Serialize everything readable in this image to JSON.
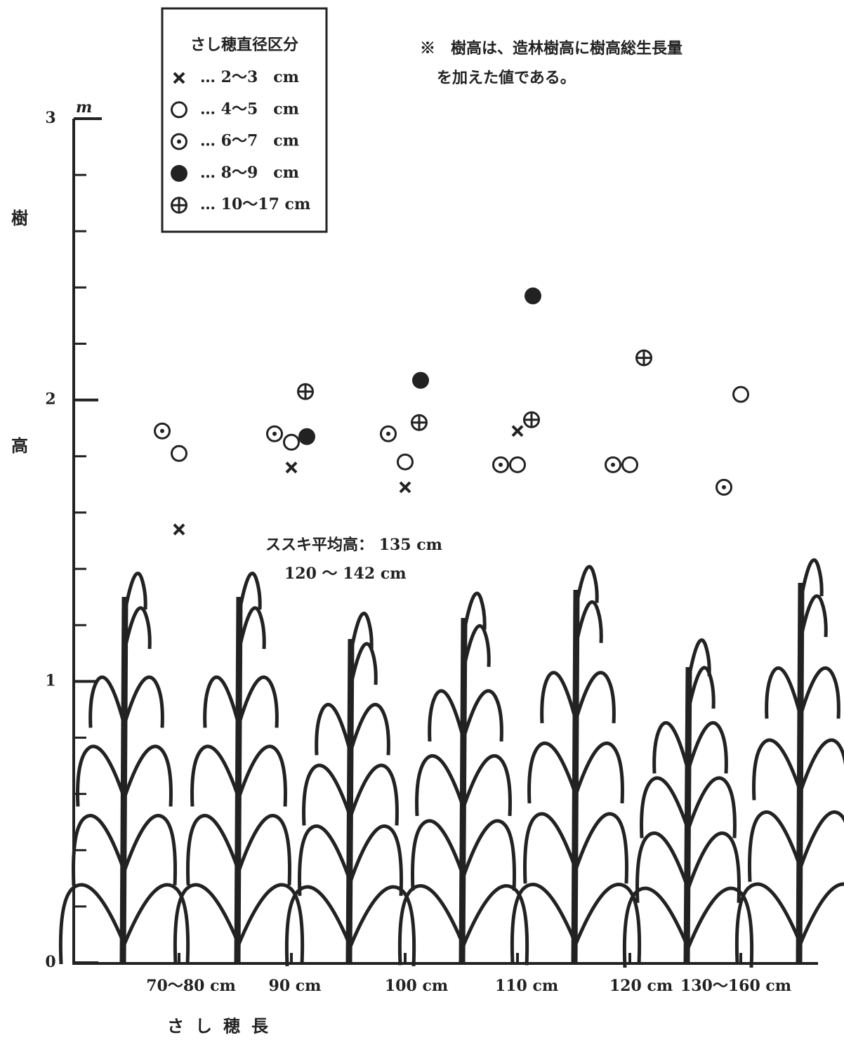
{
  "chart_data": {
    "type": "scatter",
    "legend_title": "さし穂直径区分",
    "note": [
      "※　樹高は、造林樹高に樹高総生長量",
      "を加えた値である。"
    ],
    "annotation": [
      "ススキ平均高： 135 cm",
      "120 ～ 142 cm"
    ],
    "y_unit": "m",
    "ylabel": "樹高",
    "xlabel": "さし穂長",
    "categories": [
      "70～80 cm",
      "90 cm",
      "100 cm",
      "110 cm",
      "120 cm",
      "130～160 cm"
    ],
    "series": [
      {
        "name": "… 2～3　cm",
        "marker": "x",
        "color": "#222",
        "values": [
          1.54,
          1.76,
          1.69,
          1.89,
          null,
          null
        ]
      },
      {
        "name": "… 4～5　cm",
        "marker": "circle",
        "color": "#222",
        "values": [
          1.81,
          1.85,
          1.78,
          1.77,
          1.77,
          2.02
        ]
      },
      {
        "name": "… 6～7　cm",
        "marker": "dot-circle",
        "color": "#222",
        "values": [
          1.89,
          1.88,
          1.88,
          1.77,
          1.77,
          1.69
        ]
      },
      {
        "name": "… 8～9　cm",
        "marker": "filled",
        "color": "#222",
        "values": [
          null,
          1.87,
          2.07,
          2.37,
          null,
          null
        ]
      },
      {
        "name": "… 10～17 cm",
        "marker": "plus-circle",
        "color": "#222",
        "values": [
          null,
          2.03,
          1.92,
          1.93,
          2.15,
          null
        ]
      }
    ],
    "ylim": [
      0,
      3
    ],
    "yticks": [
      0,
      1,
      2,
      3
    ],
    "minor_yticks": [
      0.2,
      0.4,
      0.6,
      0.8,
      1.2,
      1.4,
      1.6,
      1.8,
      2.2,
      2.4,
      2.6,
      2.8
    ]
  }
}
